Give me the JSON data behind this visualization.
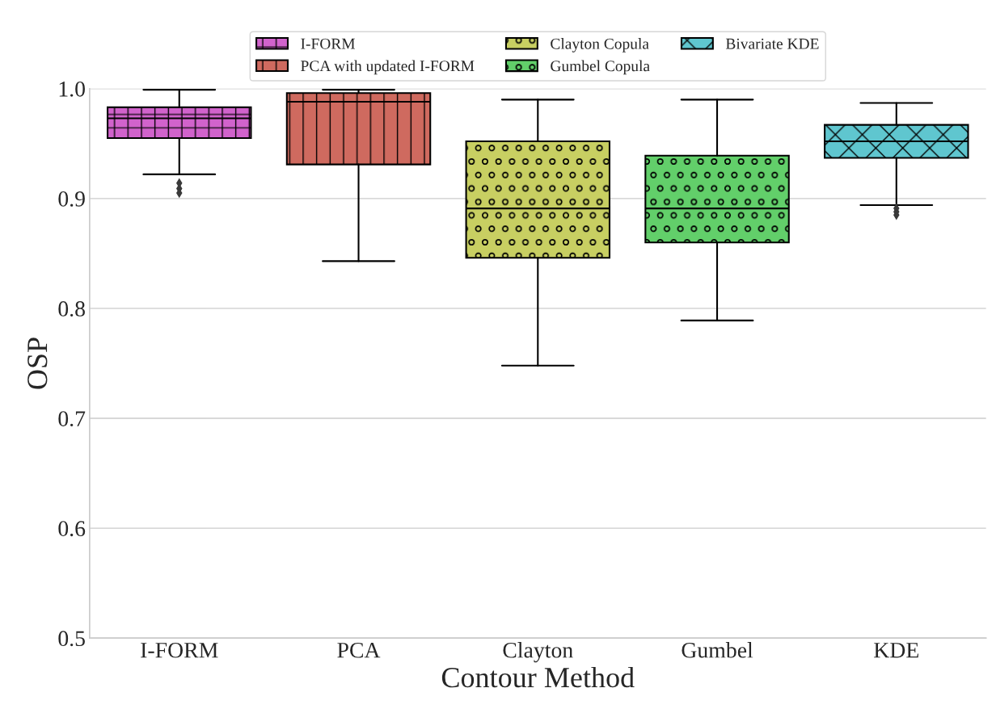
{
  "chart_data": {
    "type": "box",
    "xlabel": "Contour Method",
    "ylabel": "OSP",
    "categories": [
      "I-FORM",
      "PCA",
      "Clayton",
      "Gumbel",
      "KDE"
    ],
    "ylim": [
      0.5,
      1.0
    ],
    "yticks": [
      0.5,
      0.6,
      0.7,
      0.8,
      0.9,
      {
        "value": 1.0,
        "label": "1.0"
      }
    ],
    "grid": "y",
    "legend": "top",
    "series": [
      {
        "name": "I-FORM",
        "color": "#d163cc",
        "boxes": [
          {
            "low": 0.922,
            "q1": 0.955,
            "median": 0.973,
            "q3": 0.983,
            "high": 0.999,
            "outliers": [
              0.914,
              0.909,
              0.905
            ]
          },
          null,
          null,
          null,
          null
        ]
      },
      {
        "name": "PCA with updated I-FORM",
        "color": "#cf6a5f",
        "boxes": [
          null,
          {
            "low": 0.843,
            "q1": 0.931,
            "median": 0.988,
            "q3": 0.996,
            "high": 0.999
          },
          null,
          null,
          null
        ]
      },
      {
        "name": "Clayton Copula",
        "color": "#c8cf62",
        "boxes": [
          null,
          null,
          {
            "low": 0.748,
            "q1": 0.846,
            "median": 0.891,
            "q3": 0.952,
            "high": 0.99
          },
          null,
          null
        ]
      },
      {
        "name": "Gumbel Copula",
        "color": "#62cf6a",
        "boxes": [
          null,
          null,
          null,
          {
            "low": 0.789,
            "q1": 0.86,
            "median": 0.891,
            "q3": 0.939,
            "high": 0.99
          },
          null
        ]
      },
      {
        "name": "Bivariate KDE",
        "color": "#5fc6cf",
        "boxes": [
          null,
          null,
          null,
          null,
          {
            "low": 0.894,
            "q1": 0.937,
            "median": 0.952,
            "q3": 0.967,
            "high": 0.987,
            "outliers": [
              0.891,
              0.888,
              0.885
            ]
          }
        ]
      }
    ]
  }
}
